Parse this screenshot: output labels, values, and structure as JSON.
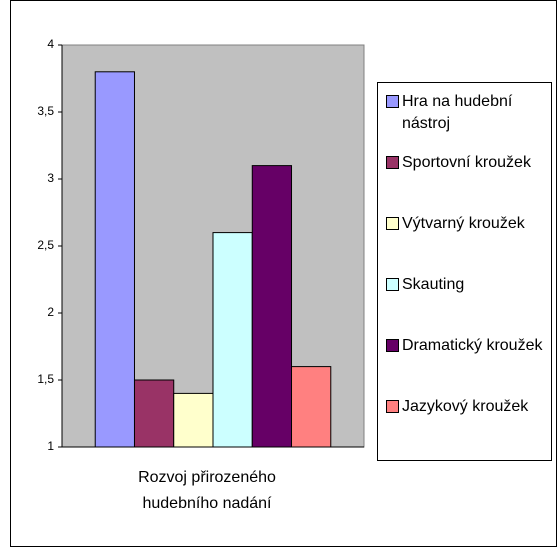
{
  "chart_data": {
    "type": "bar",
    "categories": [
      "Rozvoj přirozeného hudebního nadání"
    ],
    "series": [
      {
        "name": "Hra na hudební nástroj",
        "color": "#9999ff",
        "values": [
          3.8
        ]
      },
      {
        "name": "Sportovní kroužek",
        "color": "#993366",
        "values": [
          1.5
        ]
      },
      {
        "name": "Výtvarný kroužek",
        "color": "#ffffcc",
        "values": [
          1.4
        ]
      },
      {
        "name": "Skauting",
        "color": "#ccffff",
        "values": [
          2.6
        ]
      },
      {
        "name": "Dramatický kroužek",
        "color": "#660066",
        "values": [
          3.1
        ]
      },
      {
        "name": "Jazykový kroužek",
        "color": "#ff8080",
        "values": [
          1.6
        ]
      }
    ],
    "ylim": [
      1,
      4
    ],
    "yticks": [
      1,
      {
        "value": 1.5,
        "label": "1,5"
      },
      2,
      {
        "value": 2.5,
        "label": "2,5"
      },
      3,
      {
        "value": 3.5,
        "label": "3,5"
      },
      4
    ],
    "grid": false,
    "legend": "right"
  }
}
